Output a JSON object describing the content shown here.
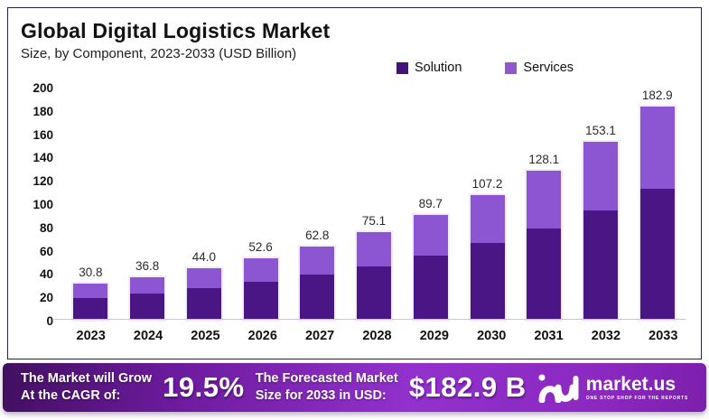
{
  "header": {
    "title": "Global Digital Logistics Market",
    "subtitle": "Size, by Component, 2023-2033 (USD Billion)"
  },
  "legend": [
    {
      "label": "Solution",
      "color": "#45127b"
    },
    {
      "label": "Services",
      "color": "#9058cf"
    }
  ],
  "chart_data": {
    "type": "bar",
    "stacked": true,
    "title": "Global Digital Logistics Market",
    "subtitle": "Size, by Component, 2023-2033 (USD Billion)",
    "unit": "USD Billion",
    "categories": [
      "2023",
      "2024",
      "2025",
      "2026",
      "2027",
      "2028",
      "2029",
      "2030",
      "2031",
      "2032",
      "2033"
    ],
    "series": [
      {
        "name": "Solution",
        "color": "#4a1685",
        "values": [
          18.9,
          22.6,
          27.0,
          32.2,
          38.5,
          46.0,
          55.0,
          65.7,
          78.5,
          93.8,
          112.1
        ]
      },
      {
        "name": "Services",
        "color": "#8c55d1",
        "values": [
          11.9,
          14.2,
          17.0,
          20.4,
          24.3,
          29.1,
          34.7,
          41.5,
          49.6,
          59.3,
          70.8
        ]
      }
    ],
    "totals_display": [
      "30.8",
      "36.8",
      "44.0",
      "52.6",
      "62.8",
      "75.1",
      "89.7",
      "107.2",
      "128.1",
      "153.1",
      "182.9"
    ],
    "ylim": [
      0,
      200
    ],
    "y_ticks": [
      0,
      20,
      40,
      60,
      80,
      100,
      120,
      140,
      160,
      180,
      200
    ],
    "grid": false,
    "legend_position": "top-right"
  },
  "banner": {
    "cagr_label_line1": "The Market will Grow",
    "cagr_label_line2": "At the CAGR of:",
    "cagr_value": "19.5%",
    "forecast_label_line1": "The Forecasted Market",
    "forecast_label_line2": "Size for 2033 in USD:",
    "forecast_value": "$182.9 B",
    "logo_text": "market.us",
    "logo_tagline": "ONE STOP SHOP FOR THE REPORTS"
  }
}
